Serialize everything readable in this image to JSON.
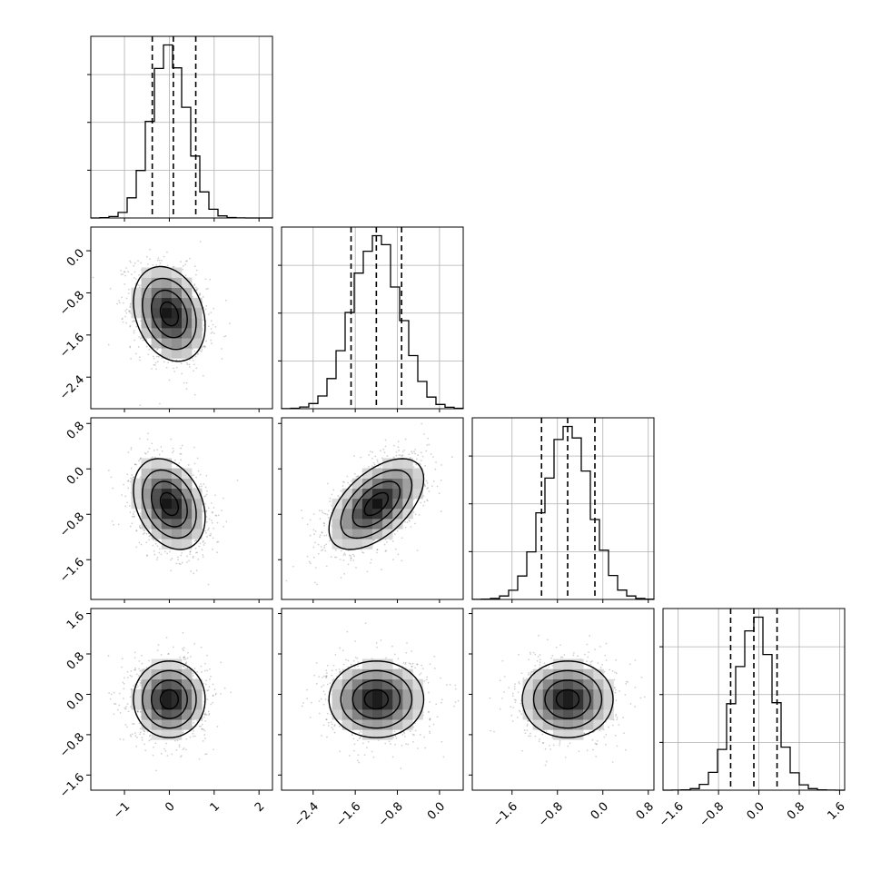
{
  "chart_data": {
    "type": "corner",
    "title": "",
    "parameters": [
      {
        "name": "",
        "range": [
          -1.75,
          2.3
        ],
        "ticks": [
          "−1",
          "0",
          "1",
          "2"
        ],
        "tick_values": [
          -1,
          0,
          1,
          2
        ],
        "mean": 0.0,
        "sd": 0.4,
        "quantiles": [
          -0.38,
          0.09,
          0.59
        ]
      },
      {
        "name": "",
        "range": [
          -3.0,
          0.45
        ],
        "ticks": [
          "−2.4",
          "−1.6",
          "−0.8",
          "0.0"
        ],
        "tick_values": [
          -2.4,
          -1.6,
          -0.8,
          0.0
        ],
        "mean": -1.2,
        "sd": 0.45,
        "quantiles": [
          -1.68,
          -1.2,
          -0.72
        ]
      },
      {
        "name": "",
        "range": [
          -2.3,
          0.9
        ],
        "ticks": [
          "−1.6",
          "−0.8",
          "0.0",
          "0.8"
        ],
        "tick_values": [
          -1.6,
          -0.8,
          0.0,
          0.8
        ],
        "mean": -0.62,
        "sd": 0.4,
        "quantiles": [
          -1.08,
          -0.62,
          -0.14
        ]
      },
      {
        "name": "",
        "range": [
          -1.9,
          1.7
        ],
        "ticks": [
          "−1.6",
          "−0.8",
          "0.0",
          "0.8",
          "1.6"
        ],
        "tick_values": [
          -1.6,
          -0.8,
          0.0,
          0.8,
          1.6
        ],
        "mean": -0.1,
        "sd": 0.38,
        "quantiles": [
          -0.56,
          -0.1,
          0.36
        ]
      }
    ],
    "correlations": {
      "1-0": -0.25,
      "2-0": -0.3,
      "2-1": 0.55,
      "3-0": 0.0,
      "3-1": 0.0,
      "3-2": 0.0
    },
    "contour_levels_sigma": [
      0.5,
      1.0,
      1.5,
      2.0
    ],
    "grid": true
  }
}
